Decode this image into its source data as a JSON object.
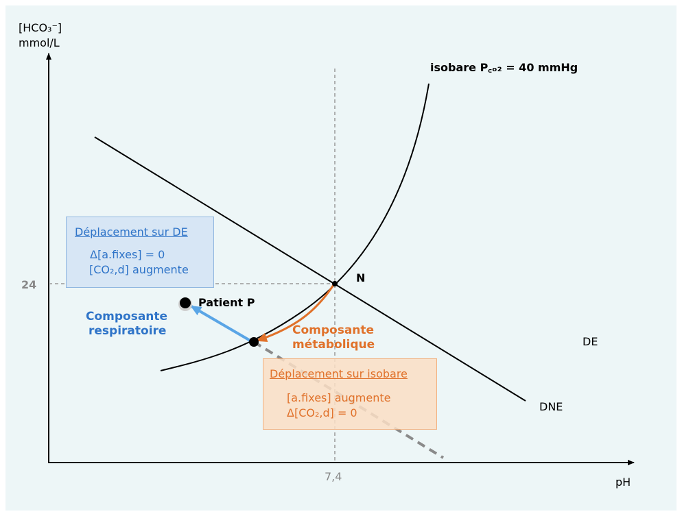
{
  "axes": {
    "y_label_line1": "[HCO₃⁻]",
    "y_label_line2": "mmol/L",
    "x_label": "pH",
    "y_tick": "24",
    "x_tick": "7,4"
  },
  "curves": {
    "isobare_label": "isobare P꜀ₒ₂ = 40 mmHg",
    "de_label": "DE",
    "dne_label": "DNE"
  },
  "points": {
    "n_label": "N",
    "patient_label": "Patient P"
  },
  "components": {
    "respiratory_line1": "Composante",
    "respiratory_line2": "respiratoire",
    "metabolic_line1": "Composante",
    "metabolic_line2": "métabolique"
  },
  "box_de": {
    "title": "Déplacement sur DE",
    "line1": "Δ[a.fixes] = 0",
    "line2": "[CO₂,d] augmente"
  },
  "box_isobare": {
    "title": "Déplacement sur isobare",
    "line1": "[a.fixes] augmente",
    "line2": "Δ[CO₂,d] = 0"
  },
  "colors": {
    "background": "#edf6f7",
    "axis": "#000000",
    "dashed": "#999999",
    "metabolic": "#e0712a",
    "respiratory": "#2f74c8",
    "respiratory_arrow": "#5aa5e6"
  }
}
